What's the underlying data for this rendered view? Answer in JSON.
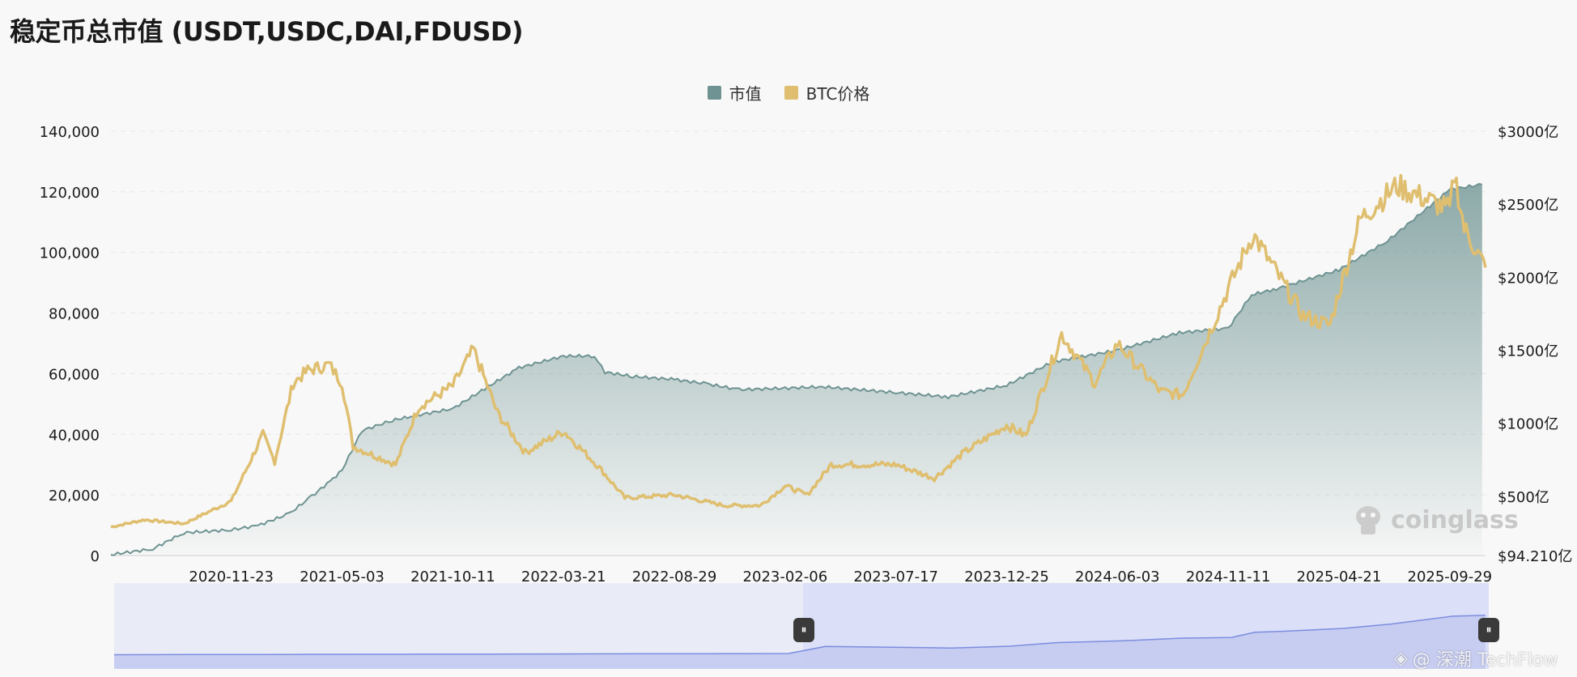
{
  "title": "稳定币总市值 (USDT,USDC,DAI,FDUSD)",
  "legend": [
    {
      "label": "市值",
      "color": "#6e9392"
    },
    {
      "label": "BTC价格",
      "color": "#dfbf6f"
    }
  ],
  "watermarks": {
    "coinglass": "coinglass",
    "techflow": "@ 深潮 TechFlow"
  },
  "chart_data": {
    "type": "area",
    "x_ticks": [
      "2020-11-23",
      "2021-05-03",
      "2021-10-11",
      "2022-03-21",
      "2022-08-29",
      "2023-02-06",
      "2023-07-17",
      "2023-12-25",
      "2024-06-03",
      "2024-11-11",
      "2025-04-21",
      "2025-09-29"
    ],
    "left_axis": {
      "ticks": [
        "0",
        "20,000",
        "40,000",
        "60,000",
        "80,000",
        "100,000",
        "120,000",
        "140,000"
      ],
      "range": [
        0,
        140000
      ]
    },
    "right_axis": {
      "ticks": [
        "$94.210亿",
        "$500亿",
        "$1000亿",
        "$1500亿",
        "$2000亿",
        "$2500亿",
        "$3000亿"
      ]
    },
    "grid": true,
    "legend_position": "top-center",
    "series": [
      {
        "name": "市值",
        "axis": "right",
        "unit": "亿 USD",
        "points": [
          [
            "2020-06-01",
            100
          ],
          [
            "2020-08-01",
            140
          ],
          [
            "2020-09-15",
            250
          ],
          [
            "2020-11-23",
            270
          ],
          [
            "2021-01-01",
            300
          ],
          [
            "2021-02-15",
            380
          ],
          [
            "2021-03-20",
            500
          ],
          [
            "2021-04-20",
            620
          ],
          [
            "2021-05-03",
            680
          ],
          [
            "2021-06-01",
            950
          ],
          [
            "2021-07-15",
            1020
          ],
          [
            "2021-08-15",
            1050
          ],
          [
            "2021-10-11",
            1100
          ],
          [
            "2021-12-01",
            1250
          ],
          [
            "2022-01-15",
            1380
          ],
          [
            "2022-03-21",
            1460
          ],
          [
            "2022-05-05",
            1460
          ],
          [
            "2022-05-20",
            1350
          ],
          [
            "2022-06-30",
            1320
          ],
          [
            "2022-08-29",
            1300
          ],
          [
            "2022-10-15",
            1270
          ],
          [
            "2022-12-01",
            1230
          ],
          [
            "2023-02-06",
            1240
          ],
          [
            "2023-04-01",
            1250
          ],
          [
            "2023-07-17",
            1210
          ],
          [
            "2023-10-01",
            1180
          ],
          [
            "2023-12-25",
            1260
          ],
          [
            "2024-03-01",
            1420
          ],
          [
            "2024-06-03",
            1500
          ],
          [
            "2024-09-01",
            1620
          ],
          [
            "2024-11-11",
            1650
          ],
          [
            "2024-12-15",
            1880
          ],
          [
            "2025-01-20",
            1920
          ],
          [
            "2025-04-21",
            2050
          ],
          [
            "2025-07-01",
            2250
          ],
          [
            "2025-09-29",
            2600
          ],
          [
            "2025-11-15",
            2635
          ]
        ]
      },
      {
        "name": "BTC价格",
        "axis": "left",
        "unit": "USD",
        "points": [
          [
            "2020-06-01",
            9400
          ],
          [
            "2020-07-20",
            11800
          ],
          [
            "2020-09-15",
            10500
          ],
          [
            "2020-11-23",
            18000
          ],
          [
            "2021-01-08",
            40000
          ],
          [
            "2021-01-25",
            31000
          ],
          [
            "2021-02-21",
            57000
          ],
          [
            "2021-03-14",
            61000
          ],
          [
            "2021-04-14",
            63000
          ],
          [
            "2021-05-03",
            57000
          ],
          [
            "2021-05-19",
            36000
          ],
          [
            "2021-07-20",
            30000
          ],
          [
            "2021-08-22",
            49000
          ],
          [
            "2021-10-11",
            56000
          ],
          [
            "2021-11-10",
            68000
          ],
          [
            "2021-12-15",
            47000
          ],
          [
            "2022-01-24",
            34000
          ],
          [
            "2022-03-21",
            41000
          ],
          [
            "2022-05-12",
            29000
          ],
          [
            "2022-06-18",
            19000
          ],
          [
            "2022-08-29",
            20000
          ],
          [
            "2022-11-09",
            16500
          ],
          [
            "2023-01-01",
            16500
          ],
          [
            "2023-02-06",
            23000
          ],
          [
            "2023-03-10",
            20000
          ],
          [
            "2023-04-14",
            30000
          ],
          [
            "2023-07-17",
            30000
          ],
          [
            "2023-09-11",
            25500
          ],
          [
            "2023-10-24",
            34000
          ],
          [
            "2023-12-25",
            43000
          ],
          [
            "2024-01-22",
            39500
          ],
          [
            "2024-03-14",
            73000
          ],
          [
            "2024-05-01",
            57000
          ],
          [
            "2024-06-03",
            70000
          ],
          [
            "2024-08-05",
            54000
          ],
          [
            "2024-09-06",
            53000
          ],
          [
            "2024-11-11",
            88000
          ],
          [
            "2024-12-17",
            106000
          ],
          [
            "2025-02-28",
            79000
          ],
          [
            "2025-04-08",
            76000
          ],
          [
            "2025-04-21",
            87000
          ],
          [
            "2025-05-22",
            111000
          ],
          [
            "2025-07-14",
            122000
          ],
          [
            "2025-09-29",
            114000
          ],
          [
            "2025-10-06",
            126000
          ],
          [
            "2025-10-20",
            108000
          ],
          [
            "2025-11-20",
            95000
          ]
        ]
      }
    ]
  }
}
